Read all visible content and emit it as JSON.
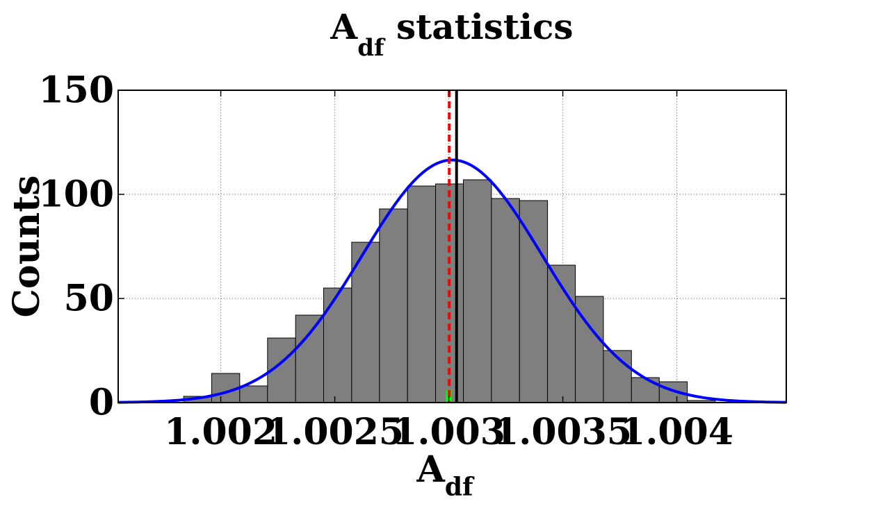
{
  "chart_data": {
    "type": "bar",
    "title": {
      "main": "A",
      "sub": "df",
      "rest": " statistics"
    },
    "xlabel": {
      "main": "A",
      "sub": "df"
    },
    "ylabel": "Counts",
    "xlim": [
      1.00155,
      1.00448
    ],
    "ylim": [
      0,
      150
    ],
    "xticks": [
      1.002,
      1.0025,
      1.003,
      1.0035,
      1.004
    ],
    "xtick_labels": [
      "1.002",
      "1.0025",
      "1.003",
      "1.0035",
      "1.004"
    ],
    "yticks": [
      0,
      50,
      100,
      150
    ],
    "ytick_labels": [
      "0",
      "50",
      "100",
      "150"
    ],
    "grid": true,
    "histogram": {
      "bin_edges": [
        1.001837,
        1.00196,
        1.002083,
        1.002205,
        1.002328,
        1.002451,
        1.002574,
        1.002696,
        1.002819,
        1.002942,
        1.003064,
        1.003187,
        1.00331,
        1.003433,
        1.003555,
        1.003678,
        1.003801,
        1.003923,
        1.004046,
        1.004169
      ],
      "counts": [
        3,
        14,
        8,
        31,
        42,
        55,
        77,
        93,
        104,
        105,
        107,
        98,
        97,
        66,
        51,
        25,
        12,
        10,
        1
      ],
      "color": "#7f7f7f"
    },
    "fit_curve": {
      "type": "gaussian",
      "mean": 1.003015,
      "sigma": 0.000395,
      "peak": 116.5,
      "color": "#0000ff"
    },
    "lines": [
      {
        "x": 1.003002,
        "style": "dashed",
        "color": "#ff0000"
      },
      {
        "x": 1.003034,
        "style": "solid",
        "color": "#000000"
      }
    ],
    "marker": {
      "x": 1.003,
      "height": 6,
      "color": "#00ff00"
    }
  }
}
